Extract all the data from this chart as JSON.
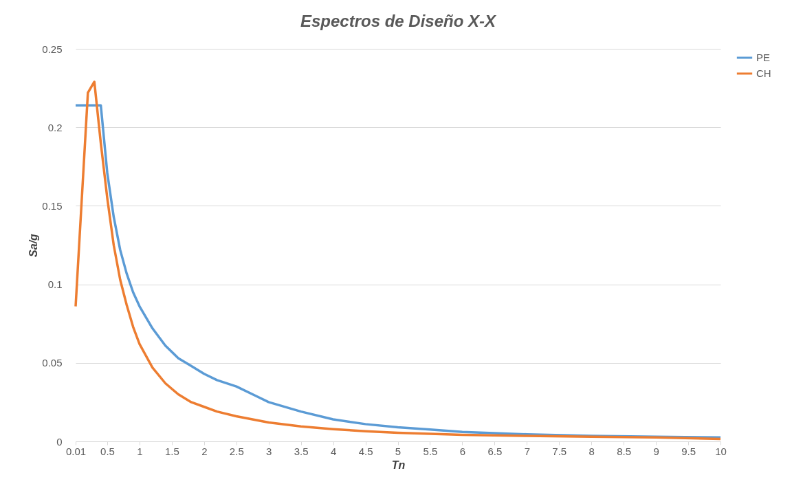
{
  "chart_data": {
    "type": "line",
    "title": "Espectros de Diseño X-X",
    "xlabel": "Tn",
    "ylabel": "Sa/g",
    "xlim": [
      0.01,
      10
    ],
    "xticks": [
      0.01,
      0.5,
      1,
      1.5,
      2,
      2.5,
      3,
      3.5,
      4,
      4.5,
      5,
      5.5,
      6,
      6.5,
      7,
      7.5,
      8,
      8.5,
      9,
      9.5,
      10
    ],
    "ylim": [
      0,
      0.25
    ],
    "yticks": [
      0,
      0.05,
      0.1,
      0.15,
      0.2,
      0.25
    ],
    "grid": "y",
    "legend": "right",
    "series": [
      {
        "name": "PE",
        "color": "#5b9bd5",
        "x": [
          0.01,
          0.1,
          0.2,
          0.3,
          0.4,
          0.5,
          0.6,
          0.7,
          0.8,
          0.9,
          1.0,
          1.2,
          1.4,
          1.6,
          1.8,
          2.0,
          2.2,
          2.5,
          2.8,
          3.0,
          3.5,
          4,
          4.5,
          5,
          5.5,
          6,
          7,
          8,
          9,
          10
        ],
        "values": [
          0.214,
          0.214,
          0.214,
          0.214,
          0.214,
          0.171,
          0.143,
          0.122,
          0.107,
          0.095,
          0.086,
          0.072,
          0.061,
          0.053,
          0.048,
          0.043,
          0.039,
          0.035,
          0.029,
          0.025,
          0.019,
          0.014,
          0.011,
          0.009,
          0.0075,
          0.006,
          0.0045,
          0.0035,
          0.003,
          0.0025
        ]
      },
      {
        "name": "CH",
        "color": "#ed7d31",
        "x": [
          0.01,
          0.2,
          0.3,
          0.4,
          0.5,
          0.6,
          0.7,
          0.8,
          0.9,
          1.0,
          1.2,
          1.4,
          1.6,
          1.8,
          2.0,
          2.2,
          2.5,
          3.0,
          3.5,
          4,
          4.5,
          5,
          6,
          7,
          8,
          9,
          10
        ],
        "values": [
          0.086,
          0.222,
          0.229,
          0.19,
          0.155,
          0.125,
          0.103,
          0.087,
          0.073,
          0.062,
          0.047,
          0.037,
          0.03,
          0.025,
          0.022,
          0.019,
          0.016,
          0.012,
          0.0095,
          0.0078,
          0.0065,
          0.0055,
          0.0042,
          0.0035,
          0.003,
          0.0025,
          0.0015
        ]
      }
    ]
  }
}
